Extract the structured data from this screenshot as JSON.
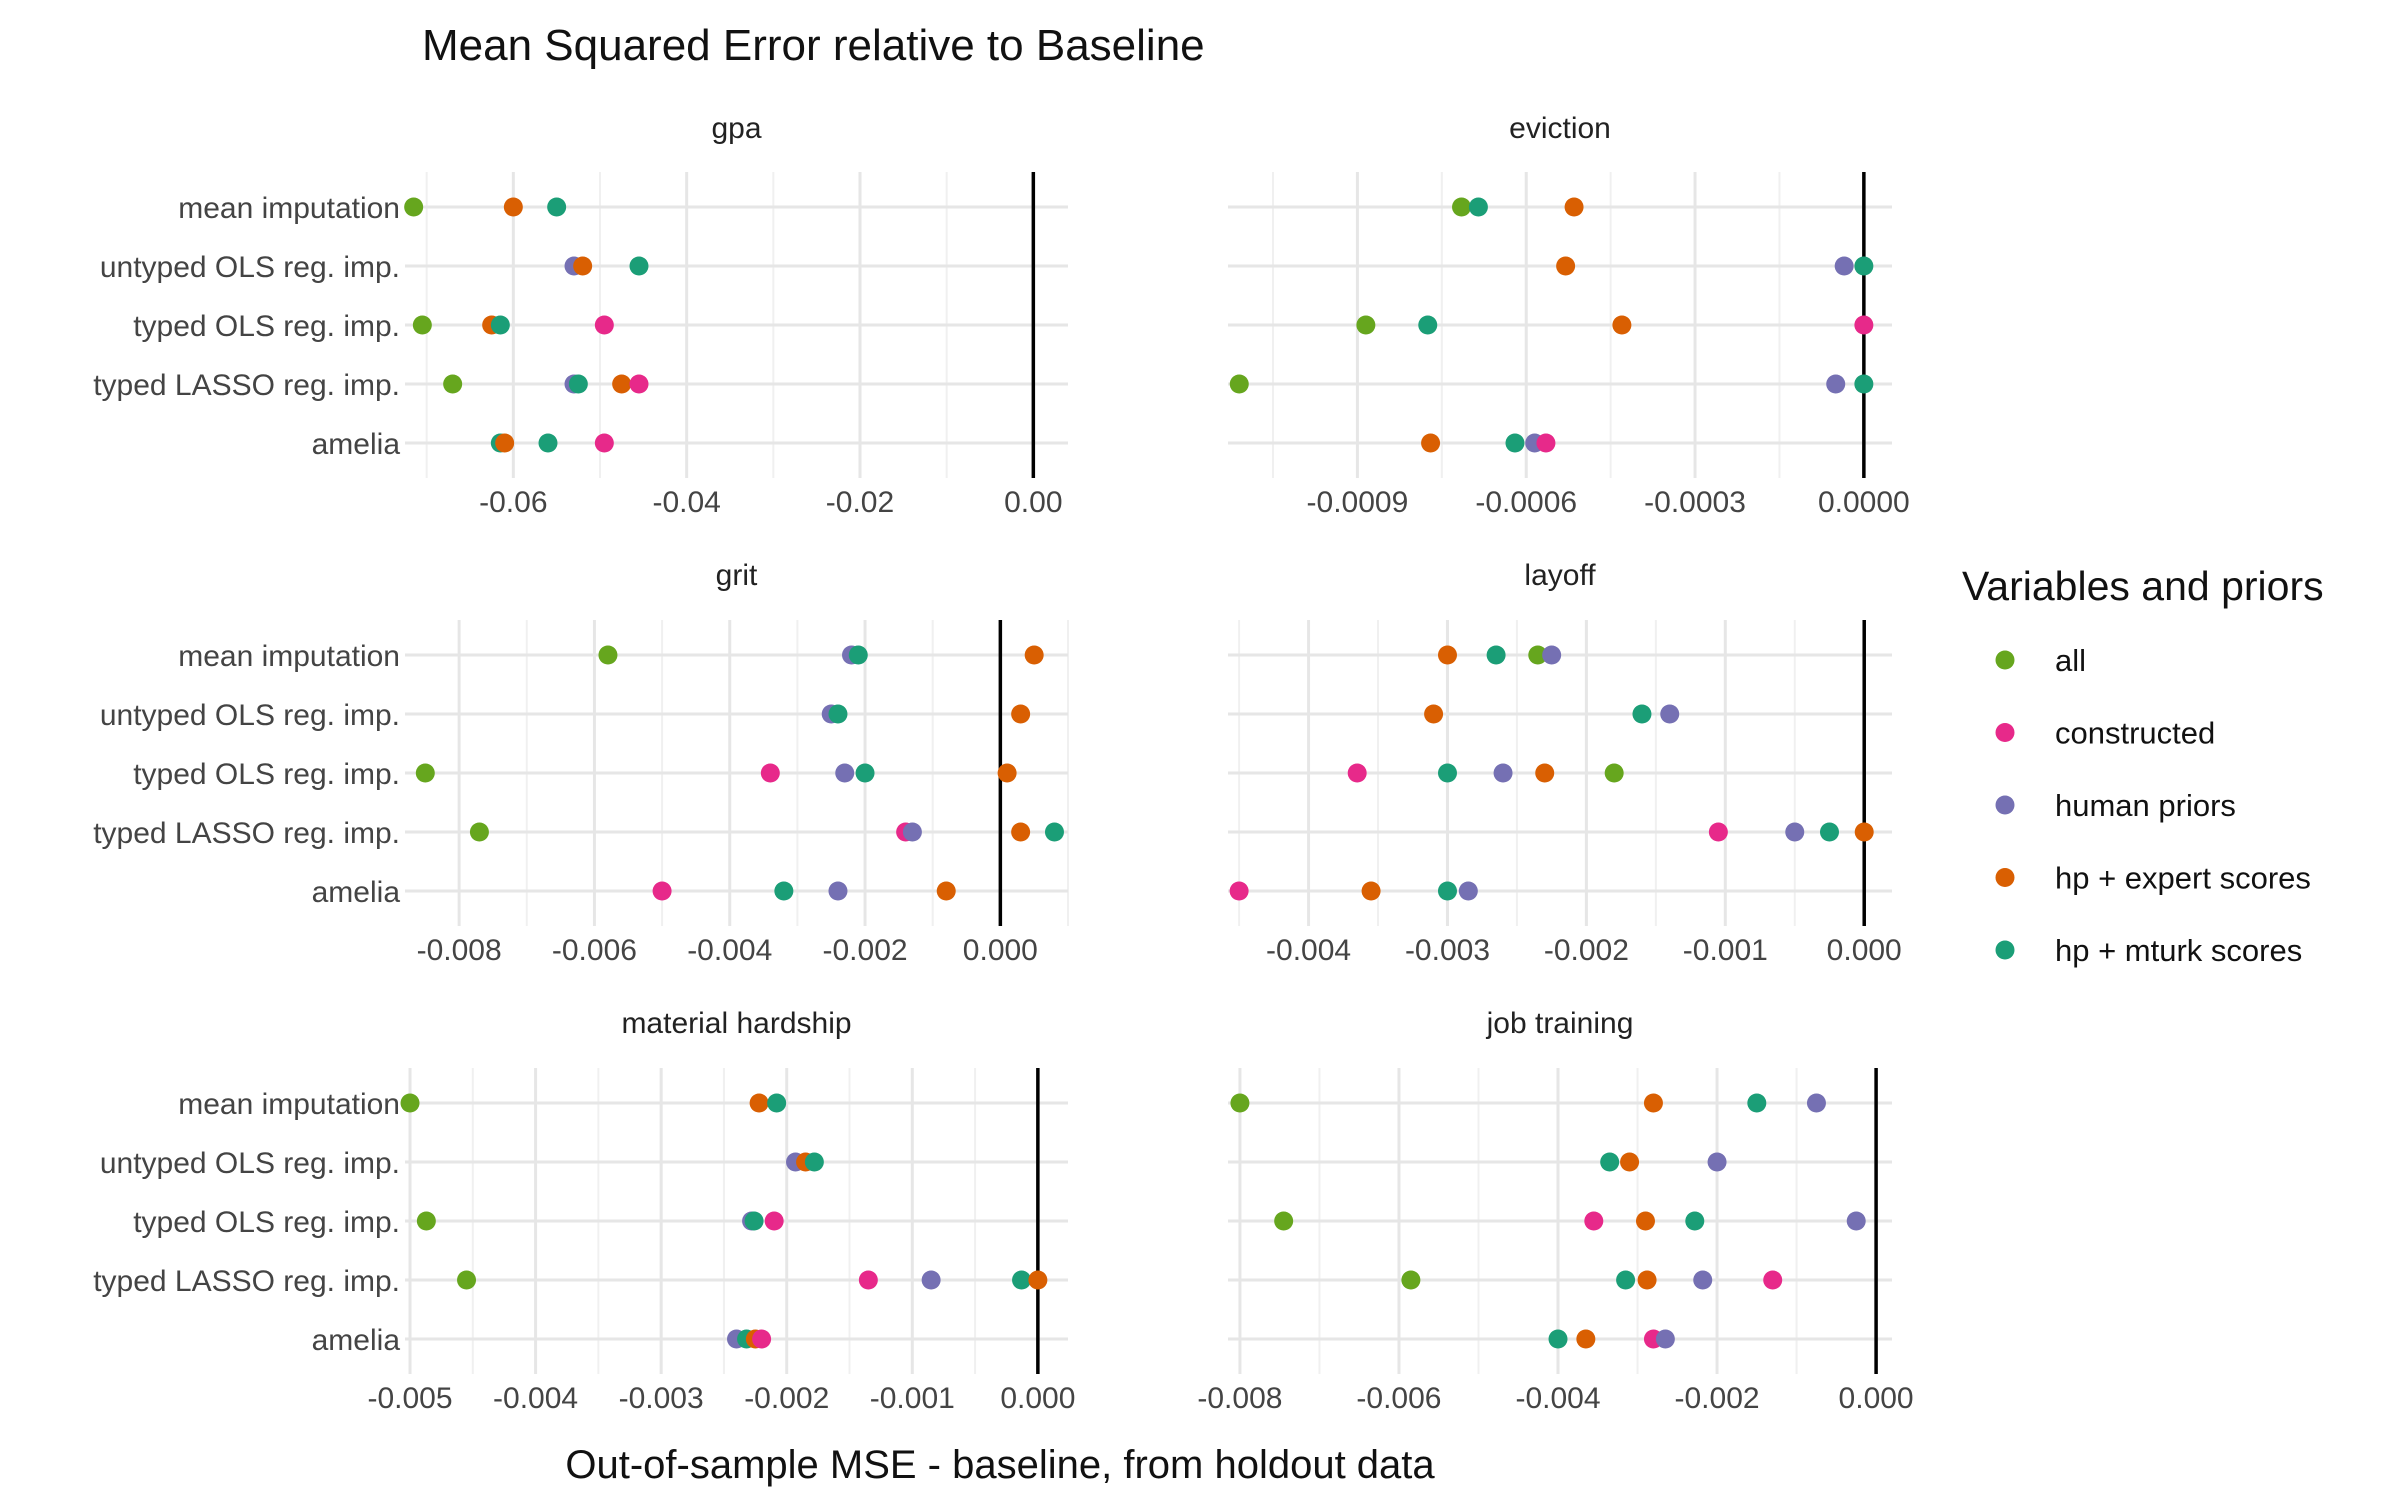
{
  "title": "Mean Squared Error relative to Baseline",
  "chart_data": {
    "type": "scatter",
    "title": "Mean Squared Error relative to Baseline",
    "xlabel": "Out-of-sample MSE - baseline, from holdout data",
    "legend": {
      "title": "Variables and priors",
      "position": "right",
      "entries": [
        {
          "name": "all",
          "color": "#66a61e"
        },
        {
          "name": "constructed",
          "color": "#e7298a"
        },
        {
          "name": "human priors",
          "color": "#7570b3"
        },
        {
          "name": "hp + expert scores",
          "color": "#d95f02"
        },
        {
          "name": "hp + mturk scores",
          "color": "#1b9e77"
        }
      ]
    },
    "methods": [
      "mean imputation",
      "untyped OLS reg. imp.",
      "typed OLS reg. imp.",
      "typed LASSO reg. imp.",
      "amelia"
    ],
    "grid": true,
    "facets": [
      {
        "name": "gpa",
        "xlim": [
          -0.0725,
          0.004
        ],
        "ticks": [
          -0.06,
          -0.04,
          -0.02,
          0.0
        ],
        "tick_labels": [
          "-0.06",
          "-0.04",
          "-0.02",
          "0.00"
        ],
        "points": [
          {
            "method": "mean imputation",
            "series": "all",
            "x": -0.0715
          },
          {
            "method": "mean imputation",
            "series": "hp + expert scores",
            "x": -0.06
          },
          {
            "method": "mean imputation",
            "series": "hp + mturk scores",
            "x": -0.055
          },
          {
            "method": "untyped OLS reg. imp.",
            "series": "human priors",
            "x": -0.053
          },
          {
            "method": "untyped OLS reg. imp.",
            "series": "hp + expert scores",
            "x": -0.052
          },
          {
            "method": "untyped OLS reg. imp.",
            "series": "hp + mturk scores",
            "x": -0.0455
          },
          {
            "method": "typed OLS reg. imp.",
            "series": "all",
            "x": -0.0705
          },
          {
            "method": "typed OLS reg. imp.",
            "series": "hp + expert scores",
            "x": -0.0625
          },
          {
            "method": "typed OLS reg. imp.",
            "series": "hp + mturk scores",
            "x": -0.0615
          },
          {
            "method": "typed OLS reg. imp.",
            "series": "constructed",
            "x": -0.0495
          },
          {
            "method": "typed LASSO reg. imp.",
            "series": "all",
            "x": -0.067
          },
          {
            "method": "typed LASSO reg. imp.",
            "series": "human priors",
            "x": -0.053
          },
          {
            "method": "typed LASSO reg. imp.",
            "series": "hp + mturk scores",
            "x": -0.0525
          },
          {
            "method": "typed LASSO reg. imp.",
            "series": "hp + expert scores",
            "x": -0.0475
          },
          {
            "method": "typed LASSO reg. imp.",
            "series": "constructed",
            "x": -0.0455
          },
          {
            "method": "amelia",
            "series": "hp + mturk scores",
            "x": -0.0615
          },
          {
            "method": "amelia",
            "series": "hp + expert scores",
            "x": -0.061
          },
          {
            "method": "amelia",
            "series": "hp + mturk scores",
            "x": -0.056
          },
          {
            "method": "amelia",
            "series": "constructed",
            "x": -0.0495
          }
        ]
      },
      {
        "name": "eviction",
        "xlim": [
          -0.00113,
          5e-05
        ],
        "ticks": [
          -0.0009,
          -0.0006,
          -0.0003,
          0.0
        ],
        "tick_labels": [
          "-0.0009",
          "-0.0006",
          "-0.0003",
          "0.0000"
        ],
        "points": [
          {
            "method": "mean imputation",
            "series": "all",
            "x": -0.000715
          },
          {
            "method": "mean imputation",
            "series": "hp + mturk scores",
            "x": -0.000685
          },
          {
            "method": "mean imputation",
            "series": "hp + expert scores",
            "x": -0.000515
          },
          {
            "method": "untyped OLS reg. imp.",
            "series": "hp + expert scores",
            "x": -0.00053
          },
          {
            "method": "untyped OLS reg. imp.",
            "series": "human priors",
            "x": -3.5e-05
          },
          {
            "method": "untyped OLS reg. imp.",
            "series": "hp + mturk scores",
            "x": 0.0
          },
          {
            "method": "typed OLS reg. imp.",
            "series": "all",
            "x": -0.000885
          },
          {
            "method": "typed OLS reg. imp.",
            "series": "hp + mturk scores",
            "x": -0.000775
          },
          {
            "method": "typed OLS reg. imp.",
            "series": "hp + expert scores",
            "x": -0.00043
          },
          {
            "method": "typed OLS reg. imp.",
            "series": "constructed",
            "x": 0.0
          },
          {
            "method": "typed LASSO reg. imp.",
            "series": "all",
            "x": -0.00111
          },
          {
            "method": "typed LASSO reg. imp.",
            "series": "human priors",
            "x": -5e-05
          },
          {
            "method": "typed LASSO reg. imp.",
            "series": "hp + mturk scores",
            "x": 0.0
          },
          {
            "method": "amelia",
            "series": "hp + expert scores",
            "x": -0.00077
          },
          {
            "method": "amelia",
            "series": "hp + mturk scores",
            "x": -0.00062
          },
          {
            "method": "amelia",
            "series": "human priors",
            "x": -0.000585
          },
          {
            "method": "amelia",
            "series": "constructed",
            "x": -0.000565
          }
        ]
      },
      {
        "name": "grit",
        "xlim": [
          -0.0088,
          0.001
        ],
        "ticks": [
          -0.008,
          -0.006,
          -0.004,
          -0.002,
          0.0
        ],
        "tick_labels": [
          "-0.008",
          "-0.006",
          "-0.004",
          "-0.002",
          "0.000"
        ],
        "points": [
          {
            "method": "mean imputation",
            "series": "all",
            "x": -0.0058
          },
          {
            "method": "mean imputation",
            "series": "human priors",
            "x": -0.0022
          },
          {
            "method": "mean imputation",
            "series": "hp + mturk scores",
            "x": -0.0021
          },
          {
            "method": "mean imputation",
            "series": "hp + expert scores",
            "x": 0.0005
          },
          {
            "method": "untyped OLS reg. imp.",
            "series": "human priors",
            "x": -0.0025
          },
          {
            "method": "untyped OLS reg. imp.",
            "series": "hp + mturk scores",
            "x": -0.0024
          },
          {
            "method": "untyped OLS reg. imp.",
            "series": "hp + expert scores",
            "x": 0.0003
          },
          {
            "method": "typed OLS reg. imp.",
            "series": "all",
            "x": -0.0085
          },
          {
            "method": "typed OLS reg. imp.",
            "series": "constructed",
            "x": -0.0034
          },
          {
            "method": "typed OLS reg. imp.",
            "series": "human priors",
            "x": -0.0023
          },
          {
            "method": "typed OLS reg. imp.",
            "series": "hp + mturk scores",
            "x": -0.002
          },
          {
            "method": "typed OLS reg. imp.",
            "series": "hp + expert scores",
            "x": 0.0001
          },
          {
            "method": "typed LASSO reg. imp.",
            "series": "all",
            "x": -0.0077
          },
          {
            "method": "typed LASSO reg. imp.",
            "series": "constructed",
            "x": -0.0014
          },
          {
            "method": "typed LASSO reg. imp.",
            "series": "human priors",
            "x": -0.0013
          },
          {
            "method": "typed LASSO reg. imp.",
            "series": "hp + expert scores",
            "x": 0.0003
          },
          {
            "method": "typed LASSO reg. imp.",
            "series": "hp + mturk scores",
            "x": 0.0008
          },
          {
            "method": "amelia",
            "series": "constructed",
            "x": -0.005
          },
          {
            "method": "amelia",
            "series": "hp + mturk scores",
            "x": -0.0032
          },
          {
            "method": "amelia",
            "series": "human priors",
            "x": -0.0024
          },
          {
            "method": "amelia",
            "series": "hp + expert scores",
            "x": -0.0008
          }
        ]
      },
      {
        "name": "layoff",
        "xlim": [
          -0.00458,
          0.0002
        ],
        "ticks": [
          -0.004,
          -0.003,
          -0.002,
          -0.001,
          0.0
        ],
        "tick_labels": [
          "-0.004",
          "-0.003",
          "-0.002",
          "-0.001",
          "0.000"
        ],
        "points": [
          {
            "method": "mean imputation",
            "series": "hp + expert scores",
            "x": -0.003
          },
          {
            "method": "mean imputation",
            "series": "hp + mturk scores",
            "x": -0.00265
          },
          {
            "method": "mean imputation",
            "series": "all",
            "x": -0.00235
          },
          {
            "method": "mean imputation",
            "series": "human priors",
            "x": -0.00225
          },
          {
            "method": "untyped OLS reg. imp.",
            "series": "hp + expert scores",
            "x": -0.0031
          },
          {
            "method": "untyped OLS reg. imp.",
            "series": "hp + mturk scores",
            "x": -0.0016
          },
          {
            "method": "untyped OLS reg. imp.",
            "series": "human priors",
            "x": -0.0014
          },
          {
            "method": "typed OLS reg. imp.",
            "series": "constructed",
            "x": -0.00365
          },
          {
            "method": "typed OLS reg. imp.",
            "series": "hp + mturk scores",
            "x": -0.003
          },
          {
            "method": "typed OLS reg. imp.",
            "series": "human priors",
            "x": -0.0026
          },
          {
            "method": "typed OLS reg. imp.",
            "series": "hp + expert scores",
            "x": -0.0023
          },
          {
            "method": "typed OLS reg. imp.",
            "series": "all",
            "x": -0.0018
          },
          {
            "method": "typed LASSO reg. imp.",
            "series": "constructed",
            "x": -0.00105
          },
          {
            "method": "typed LASSO reg. imp.",
            "series": "human priors",
            "x": -0.0005
          },
          {
            "method": "typed LASSO reg. imp.",
            "series": "hp + mturk scores",
            "x": -0.00025
          },
          {
            "method": "typed LASSO reg. imp.",
            "series": "hp + expert scores",
            "x": 0.0
          },
          {
            "method": "amelia",
            "series": "constructed",
            "x": -0.0045
          },
          {
            "method": "amelia",
            "series": "hp + expert scores",
            "x": -0.00355
          },
          {
            "method": "amelia",
            "series": "hp + mturk scores",
            "x": -0.003
          },
          {
            "method": "amelia",
            "series": "human priors",
            "x": -0.00285
          }
        ]
      },
      {
        "name": "material hardship",
        "xlim": [
          -0.00504,
          0.00024
        ],
        "ticks": [
          -0.005,
          -0.004,
          -0.003,
          -0.002,
          -0.001,
          0.0
        ],
        "tick_labels": [
          "-0.005",
          "-0.004",
          "-0.003",
          "-0.002",
          "-0.001",
          "0.000"
        ],
        "points": [
          {
            "method": "mean imputation",
            "series": "all",
            "x": -0.005
          },
          {
            "method": "mean imputation",
            "series": "hp + expert scores",
            "x": -0.00222
          },
          {
            "method": "mean imputation",
            "series": "hp + mturk scores",
            "x": -0.00208
          },
          {
            "method": "untyped OLS reg. imp.",
            "series": "human priors",
            "x": -0.00193
          },
          {
            "method": "untyped OLS reg. imp.",
            "series": "hp + expert scores",
            "x": -0.00185
          },
          {
            "method": "untyped OLS reg. imp.",
            "series": "hp + mturk scores",
            "x": -0.00178
          },
          {
            "method": "typed OLS reg. imp.",
            "series": "all",
            "x": -0.00487
          },
          {
            "method": "typed OLS reg. imp.",
            "series": "human priors",
            "x": -0.00228
          },
          {
            "method": "typed OLS reg. imp.",
            "series": "hp + mturk scores",
            "x": -0.00226
          },
          {
            "method": "typed OLS reg. imp.",
            "series": "constructed",
            "x": -0.0021
          },
          {
            "method": "typed LASSO reg. imp.",
            "series": "all",
            "x": -0.00455
          },
          {
            "method": "typed LASSO reg. imp.",
            "series": "constructed",
            "x": -0.00135
          },
          {
            "method": "typed LASSO reg. imp.",
            "series": "human priors",
            "x": -0.00085
          },
          {
            "method": "typed LASSO reg. imp.",
            "series": "hp + mturk scores",
            "x": -0.00013
          },
          {
            "method": "typed LASSO reg. imp.",
            "series": "hp + expert scores",
            "x": 0.0
          },
          {
            "method": "amelia",
            "series": "human priors",
            "x": -0.0024
          },
          {
            "method": "amelia",
            "series": "hp + mturk scores",
            "x": -0.00232
          },
          {
            "method": "amelia",
            "series": "hp + expert scores",
            "x": -0.00225
          },
          {
            "method": "amelia",
            "series": "constructed",
            "x": -0.0022
          }
        ]
      },
      {
        "name": "job training",
        "xlim": [
          -0.00815,
          0.0002
        ],
        "ticks": [
          -0.008,
          -0.006,
          -0.004,
          -0.002,
          0.0
        ],
        "tick_labels": [
          "-0.008",
          "-0.006",
          "-0.004",
          "-0.002",
          "0.000"
        ],
        "points": [
          {
            "method": "mean imputation",
            "series": "all",
            "x": -0.008
          },
          {
            "method": "mean imputation",
            "series": "hp + expert scores",
            "x": -0.0028
          },
          {
            "method": "mean imputation",
            "series": "hp + mturk scores",
            "x": -0.0015
          },
          {
            "method": "mean imputation",
            "series": "human priors",
            "x": -0.00075
          },
          {
            "method": "untyped OLS reg. imp.",
            "series": "hp + mturk scores",
            "x": -0.00335
          },
          {
            "method": "untyped OLS reg. imp.",
            "series": "hp + expert scores",
            "x": -0.0031
          },
          {
            "method": "untyped OLS reg. imp.",
            "series": "human priors",
            "x": -0.002
          },
          {
            "method": "typed OLS reg. imp.",
            "series": "all",
            "x": -0.00745
          },
          {
            "method": "typed OLS reg. imp.",
            "series": "constructed",
            "x": -0.00355
          },
          {
            "method": "typed OLS reg. imp.",
            "series": "hp + expert scores",
            "x": -0.0029
          },
          {
            "method": "typed OLS reg. imp.",
            "series": "hp + mturk scores",
            "x": -0.00228
          },
          {
            "method": "typed OLS reg. imp.",
            "series": "human priors",
            "x": -0.00025
          },
          {
            "method": "typed LASSO reg. imp.",
            "series": "all",
            "x": -0.00585
          },
          {
            "method": "typed LASSO reg. imp.",
            "series": "hp + mturk scores",
            "x": -0.00315
          },
          {
            "method": "typed LASSO reg. imp.",
            "series": "hp + expert scores",
            "x": -0.00288
          },
          {
            "method": "typed LASSO reg. imp.",
            "series": "human priors",
            "x": -0.00218
          },
          {
            "method": "typed LASSO reg. imp.",
            "series": "constructed",
            "x": -0.0013
          },
          {
            "method": "amelia",
            "series": "hp + mturk scores",
            "x": -0.004
          },
          {
            "method": "amelia",
            "series": "hp + expert scores",
            "x": -0.00365
          },
          {
            "method": "amelia",
            "series": "constructed",
            "x": -0.0028
          },
          {
            "method": "amelia",
            "series": "human priors",
            "x": -0.00265
          }
        ]
      }
    ]
  }
}
